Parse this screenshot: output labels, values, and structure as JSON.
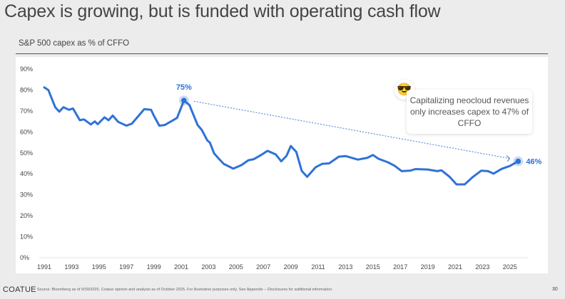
{
  "title": "Capex is growing, but is funded with operating cash flow",
  "footer": {
    "logo": "COATUE",
    "source": "Source: Bloomberg as of 9/30/2025. Coatue opinion and analysis as of October 2025. For illustrative purposes only. See Appendix – Disclosures for additional information.",
    "page": "30"
  },
  "colors": {
    "line": "#2f72d6",
    "arrow": "#5b8fe0",
    "text": "#444444"
  },
  "chart_data": {
    "type": "line",
    "title": "S&P 500 capex as % of CFFO",
    "xlabel": "",
    "ylabel": "",
    "xlim": [
      1991,
      2026
    ],
    "ylim": [
      0,
      90
    ],
    "grid": false,
    "x_ticks": [
      "1991",
      "1993",
      "1995",
      "1997",
      "1999",
      "2001",
      "2003",
      "2005",
      "2007",
      "2009",
      "2011",
      "2013",
      "2015",
      "2017",
      "2019",
      "2021",
      "2023",
      "2025"
    ],
    "y_ticks": [
      "0%",
      "10%",
      "20%",
      "30%",
      "40%",
      "50%",
      "60%",
      "70%",
      "80%",
      "90%"
    ],
    "series": [
      {
        "name": "S&P 500 capex as % of CFFO",
        "x": [
          1991,
          1991.3,
          1991.8,
          1992.1,
          1992.4,
          1992.8,
          1993.1,
          1993.6,
          1993.9,
          1994.4,
          1994.7,
          1994.9,
          1995.4,
          1995.7,
          1996,
          1996.4,
          1997,
          1997.4,
          1997.9,
          1998.3,
          1998.8,
          1999,
          1999.4,
          1999.8,
          2000.4,
          2000.7,
          2001.2,
          2001.6,
          2002.2,
          2002.5,
          2002.9,
          2003.1,
          2003.4,
          2003.7,
          2004.1,
          2004.8,
          2005.4,
          2005.9,
          2006.3,
          2006.9,
          2007.3,
          2007.9,
          2008.3,
          2008.7,
          2009,
          2009.4,
          2009.8,
          2010.2,
          2010.8,
          2011.3,
          2011.8,
          2012.5,
          2013,
          2013.9,
          2014.6,
          2015,
          2015.4,
          2016.1,
          2016.6,
          2017.1,
          2017.7,
          2018.1,
          2019,
          2019.7,
          2020,
          2020.6,
          2021.1,
          2021.7,
          2022.3,
          2022.9,
          2023.4,
          2023.8,
          2024.4,
          2025,
          2025.6
        ],
        "y": [
          81.3,
          80,
          71.8,
          69.7,
          71.8,
          70.6,
          71.2,
          65.6,
          66,
          63.6,
          65,
          63.7,
          67,
          65.6,
          67.8,
          64.8,
          63,
          64,
          67.8,
          70.9,
          70.6,
          67.8,
          63,
          63.3,
          65.6,
          66.7,
          75,
          72.9,
          63.3,
          61,
          56,
          54.9,
          49.8,
          47.6,
          44.8,
          42.5,
          44.2,
          46.5,
          47,
          49.3,
          51,
          49.3,
          46,
          48.7,
          53.3,
          50.5,
          41.4,
          38.6,
          43.1,
          44.8,
          45,
          48.2,
          48.5,
          46.8,
          47.7,
          49,
          47.2,
          45.5,
          43.8,
          41.3,
          41.5,
          42.3,
          42.1,
          41.3,
          41.7,
          38.6,
          35,
          35,
          38.6,
          41.5,
          41.3,
          40.1,
          42.4,
          43.8,
          46
        ]
      }
    ],
    "annotations": [
      {
        "text": "75%",
        "x": 2001.2,
        "y": 75
      },
      {
        "text": "46%",
        "x": 2025.6,
        "y": 46
      },
      {
        "text": "Capitalizing neocloud revenues only increases capex to 47% of CFFO",
        "icon": "sunglasses-emoji"
      }
    ]
  }
}
